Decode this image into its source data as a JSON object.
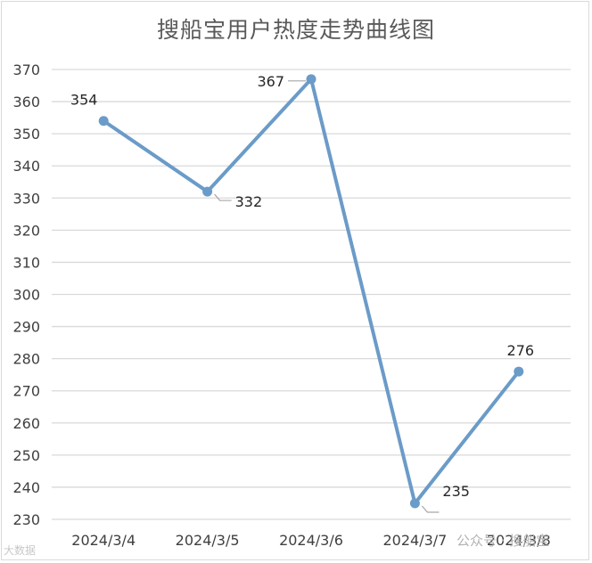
{
  "chart_data": {
    "type": "line",
    "title": "搜船宝用户热度走势曲线图",
    "categories": [
      "2024/3/4",
      "2024/3/5",
      "2024/3/6",
      "2024/3/7",
      "2024/3/8"
    ],
    "series": [
      {
        "values": [
          354,
          332,
          367,
          235,
          276
        ]
      }
    ],
    "data_labels": [
      "354",
      "332",
      "367",
      "235",
      "276"
    ],
    "ylim": [
      230,
      370
    ],
    "yticks": [
      230,
      240,
      250,
      260,
      270,
      280,
      290,
      300,
      310,
      320,
      330,
      340,
      350,
      360,
      370
    ],
    "grid": true,
    "line_color": "#6b9bc8",
    "grid_color": "#d9d9d9",
    "xlabel": "",
    "ylabel": ""
  },
  "watermark": {
    "text": "公众号 · 搜船宝",
    "left_text": "大数据"
  }
}
